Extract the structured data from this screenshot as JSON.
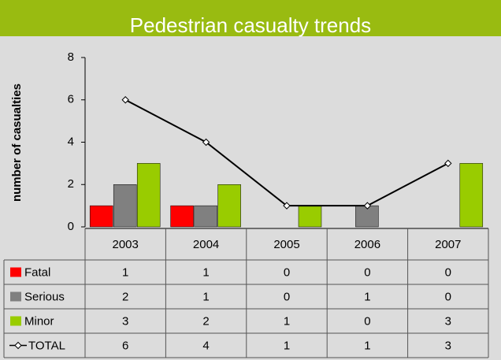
{
  "chart_data": {
    "type": "bar",
    "title": "Pedestrian casualty trends",
    "y_label": "number of casualties",
    "categories": [
      "2003",
      "2004",
      "2005",
      "2006",
      "2007"
    ],
    "series": [
      {
        "name": "Fatal",
        "color": "#ff0000",
        "values": [
          1,
          1,
          0,
          0,
          0
        ]
      },
      {
        "name": "Serious",
        "color": "#808080",
        "values": [
          2,
          1,
          0,
          1,
          0
        ]
      },
      {
        "name": "Minor",
        "color": "#99cc00",
        "values": [
          3,
          2,
          1,
          0,
          3
        ]
      },
      {
        "name": "TOTAL",
        "type": "line",
        "color": "#000000",
        "values": [
          6,
          4,
          1,
          1,
          3
        ]
      }
    ],
    "ylim": [
      0,
      8
    ],
    "yticks": [
      0,
      2,
      4,
      6,
      8
    ],
    "grid": false
  }
}
